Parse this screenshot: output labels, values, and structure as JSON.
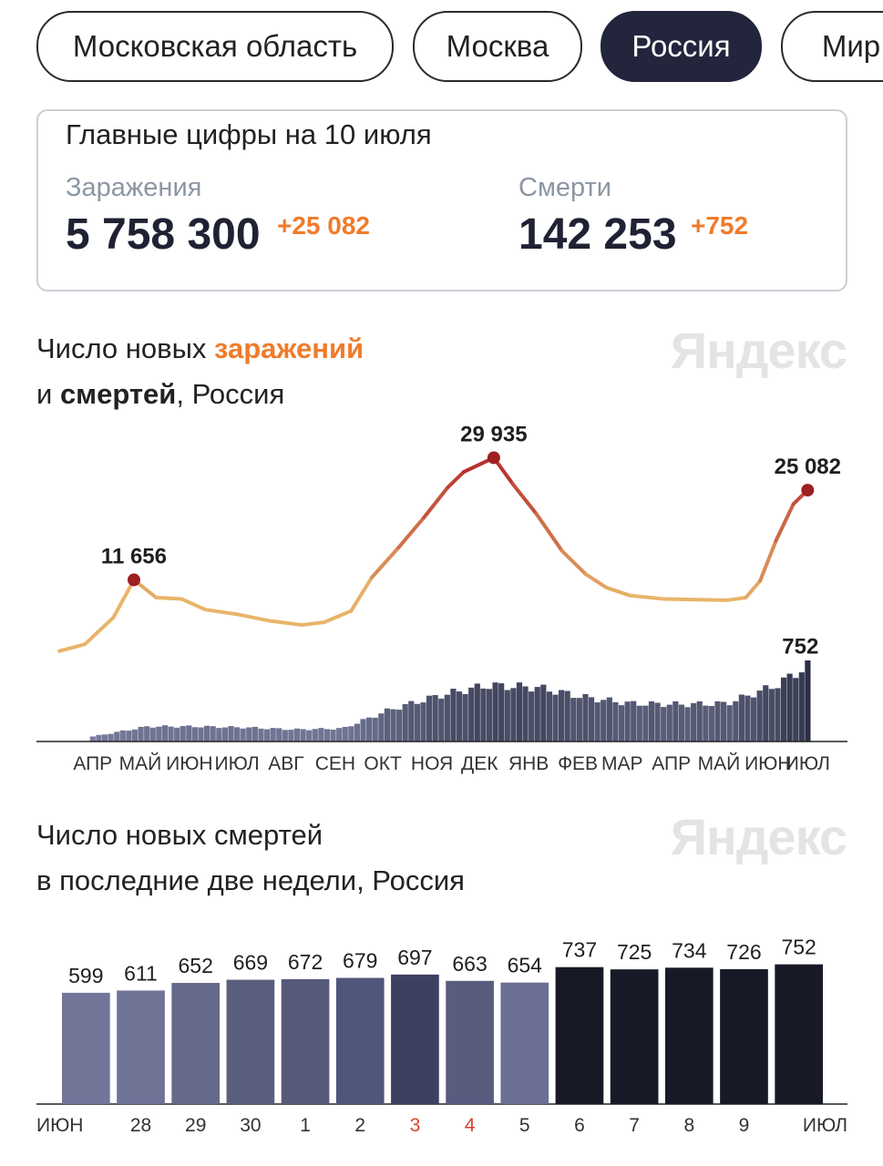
{
  "tabs": [
    {
      "label": "Московская область",
      "active": false
    },
    {
      "label": "Москва",
      "active": false
    },
    {
      "label": "Россия",
      "active": true
    },
    {
      "label": "Мир",
      "active": false
    }
  ],
  "summary": {
    "title": "Главные цифры на 10 июля",
    "infections": {
      "label": "Заражения",
      "value": "5 758 300",
      "delta": "+25 082"
    },
    "deaths": {
      "label": "Смерти",
      "value": "142 253",
      "delta": "+752"
    }
  },
  "brand": "Яндекс",
  "colors": {
    "accent": "#f07b2a",
    "dark": "#22253b",
    "low_curve": "#e8b56a",
    "high_curve": "#b52a2a",
    "peak_dot": "#9e1f22"
  },
  "chart1": {
    "title_line1_prefix": "Число новых ",
    "title_line1_accent": "заражений",
    "title_line2_prefix": "и ",
    "title_line2_bold": "смертей",
    "title_line2_suffix": ", Россия"
  },
  "chart2": {
    "title_line1": "Число новых смертей",
    "title_line2": "в последние две недели, Россия"
  },
  "chart_data": [
    {
      "type": "line",
      "series": [
        {
          "points": [
            {
              "x": "2020-03-25",
              "y": 1000
            },
            {
              "x": "2020-04-10",
              "y": 2000
            },
            {
              "x": "2020-04-28",
              "y": 6000
            },
            {
              "x": "2020-05-11",
              "y": 11656
            },
            {
              "x": "2020-05-25",
              "y": 9000
            },
            {
              "x": "2020-06-10",
              "y": 8800
            },
            {
              "x": "2020-06-25",
              "y": 7200
            },
            {
              "x": "2020-07-15",
              "y": 6500
            },
            {
              "x": "2020-08-05",
              "y": 5500
            },
            {
              "x": "2020-08-25",
              "y": 4900
            },
            {
              "x": "2020-09-08",
              "y": 5300
            },
            {
              "x": "2020-09-25",
              "y": 7000
            },
            {
              "x": "2020-10-08",
              "y": 12000
            },
            {
              "x": "2020-10-25",
              "y": 16500
            },
            {
              "x": "2020-11-10",
              "y": 21000
            },
            {
              "x": "2020-11-25",
              "y": 25500
            },
            {
              "x": "2020-12-05",
              "y": 27800
            },
            {
              "x": "2020-12-24",
              "y": 29935
            },
            {
              "x": "2021-01-05",
              "y": 26000
            },
            {
              "x": "2021-01-20",
              "y": 21500
            },
            {
              "x": "2021-02-05",
              "y": 16000
            },
            {
              "x": "2021-02-20",
              "y": 12500
            },
            {
              "x": "2021-03-05",
              "y": 10500
            },
            {
              "x": "2021-03-20",
              "y": 9300
            },
            {
              "x": "2021-04-10",
              "y": 8800
            },
            {
              "x": "2021-04-30",
              "y": 8700
            },
            {
              "x": "2021-05-20",
              "y": 8600
            },
            {
              "x": "2021-06-01",
              "y": 9000
            },
            {
              "x": "2021-06-10",
              "y": 11500
            },
            {
              "x": "2021-06-20",
              "y": 17500
            },
            {
              "x": "2021-07-01",
              "y": 23000
            },
            {
              "x": "2021-07-10",
              "y": 25082
            }
          ]
        },
        {
          "name": "deaths",
          "type": "bar",
          "points": [
            {
              "x": "2020-04-15",
              "y": 50
            },
            {
              "x": "2020-05-20",
              "y": 150
            },
            {
              "x": "2020-06-20",
              "y": 150
            },
            {
              "x": "2020-07-20",
              "y": 140
            },
            {
              "x": "2020-08-20",
              "y": 120
            },
            {
              "x": "2020-09-20",
              "y": 130
            },
            {
              "x": "2020-10-20",
              "y": 320
            },
            {
              "x": "2020-11-20",
              "y": 460
            },
            {
              "x": "2020-12-20",
              "y": 560
            },
            {
              "x": "2021-01-20",
              "y": 540
            },
            {
              "x": "2021-02-20",
              "y": 440
            },
            {
              "x": "2021-03-20",
              "y": 380
            },
            {
              "x": "2021-04-20",
              "y": 370
            },
            {
              "x": "2021-05-20",
              "y": 380
            },
            {
              "x": "2021-06-20",
              "y": 560
            },
            {
              "x": "2021-07-10",
              "y": 752
            }
          ]
        }
      ],
      "annotations": [
        {
          "x": "2020-05-11",
          "y": 11656,
          "label": "11 656"
        },
        {
          "x": "2020-12-24",
          "y": 29935,
          "label": "29 935"
        },
        {
          "x": "2021-07-10",
          "y": 25082,
          "label": "25 082"
        },
        {
          "x": "2021-07-10",
          "y": 752,
          "label": "752",
          "series": "deaths"
        }
      ],
      "x_tick_labels": [
        "АПР",
        "МАЙ",
        "ИЮН",
        "ИЮЛ",
        "АВГ",
        "СЕН",
        "ОКТ",
        "НОЯ",
        "ДЕК",
        "ЯНВ",
        "ФЕВ",
        "МАР",
        "АПР",
        "МАЙ",
        "ИЮН",
        "ИЮЛ"
      ],
      "xlim": [
        "2020-03-22",
        "2021-07-15"
      ],
      "ylim": [
        0,
        30000
      ],
      "y_deaths_lim": [
        0,
        800
      ],
      "grid": false,
      "legend": "none"
    },
    {
      "type": "bar",
      "categories": [
        "ИЮН",
        "28",
        "29",
        "30",
        "1",
        "2",
        "3",
        "4",
        "5",
        "6",
        "7",
        "8",
        "9",
        "ИЮЛ"
      ],
      "values": [
        599,
        611,
        652,
        669,
        672,
        679,
        697,
        663,
        654,
        737,
        725,
        734,
        726,
        752
      ],
      "weekend_categories": [
        "3",
        "4"
      ],
      "ylim": [
        0,
        760
      ],
      "grid": false,
      "legend": "none"
    }
  ]
}
